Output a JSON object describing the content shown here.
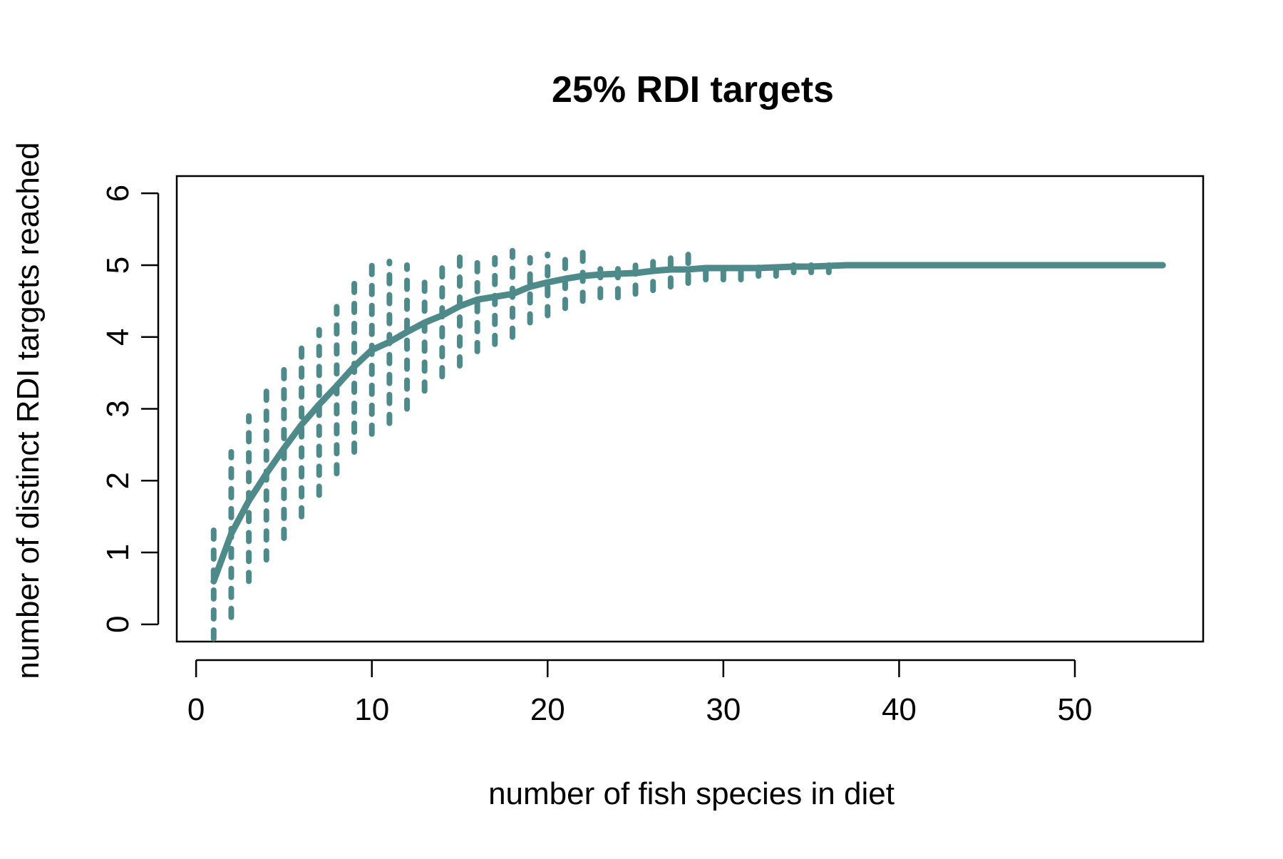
{
  "chart_data": {
    "type": "line",
    "title": "25% RDI targets",
    "xlabel": "number of fish species in diet",
    "ylabel": "number of distinct RDI targets reached",
    "xlim": [
      -1.1,
      57.3
    ],
    "ylim": [
      -0.24,
      6.24
    ],
    "xticks": [
      0,
      10,
      20,
      30,
      40,
      50
    ],
    "yticks": [
      0,
      1,
      2,
      3,
      4,
      5,
      6
    ],
    "grid": false,
    "legend": "none",
    "series_color": "#4e8a8a",
    "x": [
      1,
      2,
      3,
      4,
      5,
      6,
      7,
      8,
      9,
      10,
      11,
      12,
      13,
      14,
      15,
      16,
      17,
      18,
      19,
      20,
      21,
      22,
      23,
      24,
      25,
      26,
      27,
      28,
      29,
      30,
      31,
      32,
      33,
      34,
      35,
      36,
      37,
      38,
      39,
      40,
      41,
      42,
      43,
      44,
      45,
      46,
      47,
      48,
      49,
      50,
      51,
      52,
      53,
      54,
      55
    ],
    "series": [
      {
        "role": "mean",
        "style": "solid",
        "values": [
          0.6,
          1.26,
          1.72,
          2.1,
          2.45,
          2.78,
          3.06,
          3.32,
          3.59,
          3.82,
          3.93,
          4.07,
          4.2,
          4.3,
          4.43,
          4.52,
          4.56,
          4.6,
          4.7,
          4.76,
          4.81,
          4.85,
          4.87,
          4.88,
          4.89,
          4.92,
          4.94,
          4.94,
          4.96,
          4.96,
          4.96,
          4.96,
          4.97,
          4.98,
          4.98,
          4.99,
          5,
          5,
          5,
          5,
          5,
          5,
          5,
          5,
          5,
          5,
          5,
          5,
          5,
          5,
          5,
          5,
          5,
          5,
          5
        ]
      },
      {
        "role": "range",
        "style": "dotted",
        "x": [
          1,
          2,
          3,
          4,
          5,
          6,
          7,
          8,
          9,
          10,
          11,
          12,
          13,
          14,
          15,
          16,
          17,
          18,
          19,
          20,
          21,
          22,
          23,
          24,
          25,
          26,
          27,
          28,
          29,
          30,
          31,
          32,
          33,
          34,
          35,
          36
        ],
        "low": [
          -0.2,
          0.1,
          0.6,
          0.9,
          1.2,
          1.5,
          1.8,
          2.1,
          2.4,
          2.65,
          2.8,
          3.0,
          3.25,
          3.45,
          3.6,
          3.8,
          3.9,
          4.0,
          4.2,
          4.3,
          4.4,
          4.5,
          4.55,
          4.55,
          4.6,
          4.65,
          4.7,
          4.75,
          4.8,
          4.8,
          4.8,
          4.85,
          4.85,
          4.9,
          4.9,
          4.9
        ],
        "high": [
          1.4,
          2.4,
          2.9,
          3.25,
          3.55,
          3.85,
          4.1,
          4.42,
          4.75,
          5.0,
          5.05,
          5.0,
          4.9,
          5.1,
          5.2,
          5.1,
          5.1,
          5.2,
          5.1,
          5.15,
          5.2,
          5.25,
          5.0,
          5.0,
          5.05,
          5.1,
          5.2,
          5.2,
          5.0,
          5.0,
          5.0,
          5.0,
          5.0,
          5.0,
          5.0,
          5.0
        ]
      }
    ]
  }
}
